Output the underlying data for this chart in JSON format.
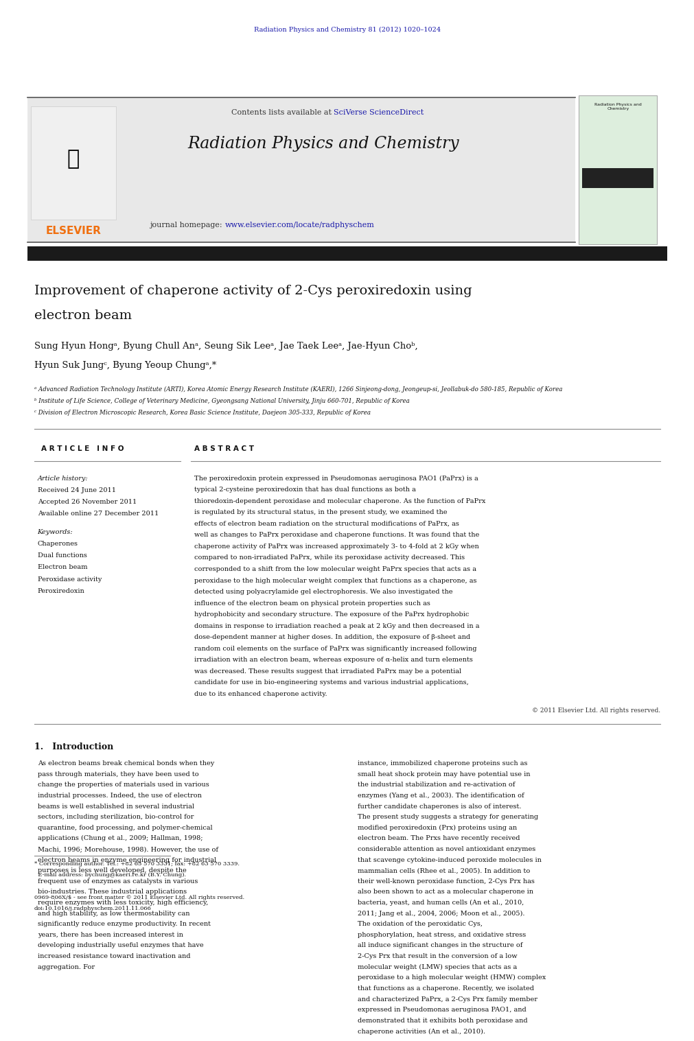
{
  "page_width": 9.92,
  "page_height": 13.23,
  "bg_color": "#ffffff",
  "journal_ref": "Radiation Physics and Chemistry 81 (2012) 1020–1024",
  "journal_ref_color": "#1a1aaa",
  "header_bg": "#e8e8e8",
  "contents_text": "Contents lists available at ",
  "sciverse_text": "SciVerse ScienceDirect",
  "sciverse_color": "#1a1aaa",
  "journal_title": "Radiation Physics and Chemistry",
  "journal_homepage_prefix": "journal homepage: ",
  "journal_url": "www.elsevier.com/locate/radphyschem",
  "journal_url_color": "#1a1aaa",
  "elsevier_color": "#f07010",
  "paper_title_line1": "Improvement of chaperone activity of 2-Cys peroxiredoxin using",
  "paper_title_line2": "electron beam",
  "authors_line1": "Sung Hyun Hongᵃ, Byung Chull Anᵃ, Seung Sik Leeᵃ, Jae Taek Leeᵃ, Jae-Hyun Choᵇ,",
  "authors_line2": "Hyun Suk Jungᶜ, Byung Yeoup Chungᵃ,*",
  "affil_a": "ᵃ Advanced Radiation Technology Institute (ARTI), Korea Atomic Energy Research Institute (KAERI), 1266 Sinjeong-dong, Jeongeup-si, Jeollabuk-do 580-185, Republic of Korea",
  "affil_b": "ᵇ Institute of Life Science, College of Veterinary Medicine, Gyeongsang National University, Jinju 660-701, Republic of Korea",
  "affil_c": "ᶜ Division of Electron Microscopic Research, Korea Basic Science Institute, Daejeon 305-333, Republic of Korea",
  "article_info_header": "A R T I C L E   I N F O",
  "abstract_header": "A B S T R A C T",
  "article_history_label": "Article history:",
  "received": "Received 24 June 2011",
  "accepted": "Accepted 26 November 2011",
  "available": "Available online 27 December 2011",
  "keywords_label": "Keywords:",
  "keywords": [
    "Chaperones",
    "Dual functions",
    "Electron beam",
    "Peroxidase activity",
    "Peroxiredoxin"
  ],
  "abstract_text": "The peroxiredoxin protein expressed in Pseudomonas aeruginosa PAO1 (PaPrx) is a typical 2-cysteine peroxiredoxin that has dual functions as both a thioredoxin-dependent peroxidase and molecular chaperone. As the function of PaPrx is regulated by its structural status, in the present study, we examined the effects of electron beam radiation on the structural modifications of PaPrx, as well as changes to PaPrx peroxidase and chaperone functions. It was found that the chaperone activity of PaPrx was increased approximately 3- to 4-fold at 2 kGy when compared to non-irradiated PaPrx, while its peroxidase activity decreased. This corresponded to a shift from the low molecular weight PaPrx species that acts as a peroxidase to the high molecular weight complex that functions as a chaperone, as detected using polyacrylamide gel electrophoresis. We also investigated the influence of the electron beam on physical protein properties such as hydrophobicity and secondary structure. The exposure of the PaPrx hydrophobic domains in response to irradiation reached a peak at 2 kGy and then decreased in a dose-dependent manner at higher doses. In addition, the exposure of β-sheet and random coil elements on the surface of PaPrx was significantly increased following irradiation with an electron beam, whereas exposure of α-helix and turn elements was decreased. These results suggest that irradiated PaPrx may be a potential candidate for use in bio-engineering systems and various industrial applications, due to its enhanced chaperone activity.",
  "copyright_text": "© 2011 Elsevier Ltd. All rights reserved.",
  "intro_header": "1.   Introduction",
  "intro_col1": "As electron beams break chemical bonds when they pass through materials, they have been used to change the properties of materials used in various industrial processes. Indeed, the use of electron beams is well established in several industrial sectors, including sterilization, bio-control for quarantine, food processing, and polymer-chemical applications (Chung et al., 2009; Hallman, 1998; Machi, 1996; Morehouse, 1998). However, the use of electron beams in enzyme engineering for industrial purposes is less well developed, despite the frequent use of enzymes as catalysts in various bio-industries. These industrial applications require enzymes with less toxicity, high efficiency, and high stability, as low thermostability can significantly reduce enzyme productivity. In recent years, there has been increased interest in developing industrially useful enzymes that have increased resistance toward inactivation and aggregation. For",
  "intro_col2": "instance, immobilized chaperone proteins such as small heat shock protein may have potential use in the industrial stabilization and re-activation of enzymes (Yang et al., 2003). The identification of further candidate chaperones is also of interest.\n    The present study suggests a strategy for generating modified peroxiredoxin (Prx) proteins using an electron beam. The Prxs have recently received considerable attention as novel antioxidant enzymes that scavenge cytokine-induced peroxide molecules in mammalian cells (Rhee et al., 2005). In addition to their well-known peroxidase function, 2-Cys Prx has also been shown to act as a molecular chaperone in bacteria, yeast, and human cells (An et al., 2010, 2011; Jang et al., 2004, 2006; Moon et al., 2005). The oxidation of the peroxidatic Cys, phosphorylation, heat stress, and oxidative stress all induce significant changes in the structure of 2-Cys Prx that result in the conversion of a low molecular weight (LMW) species that acts as a peroxidase to a high molecular weight (HMW) complex that functions as a chaperone. Recently, we isolated and characterized PaPrx, a 2-Cys Prx family member expressed in Pseudomonas aeruginosa PAO1, and demonstrated that it exhibits both peroxidase and chaperone activities (An et al., 2010).",
  "footnote_text": "* Corresponding author. Tel.: +82 63 570 3331; fax: +82 63 570 3339.\n  E-mail address: bychung@kaeri.re.kr (B.Y. Chung).",
  "issn_text": "0969-806X/$ - see front matter © 2011 Elsevier Ltd. All rights reserved.\ndoi:10.1016/j.radphyschem.2011.11.066"
}
